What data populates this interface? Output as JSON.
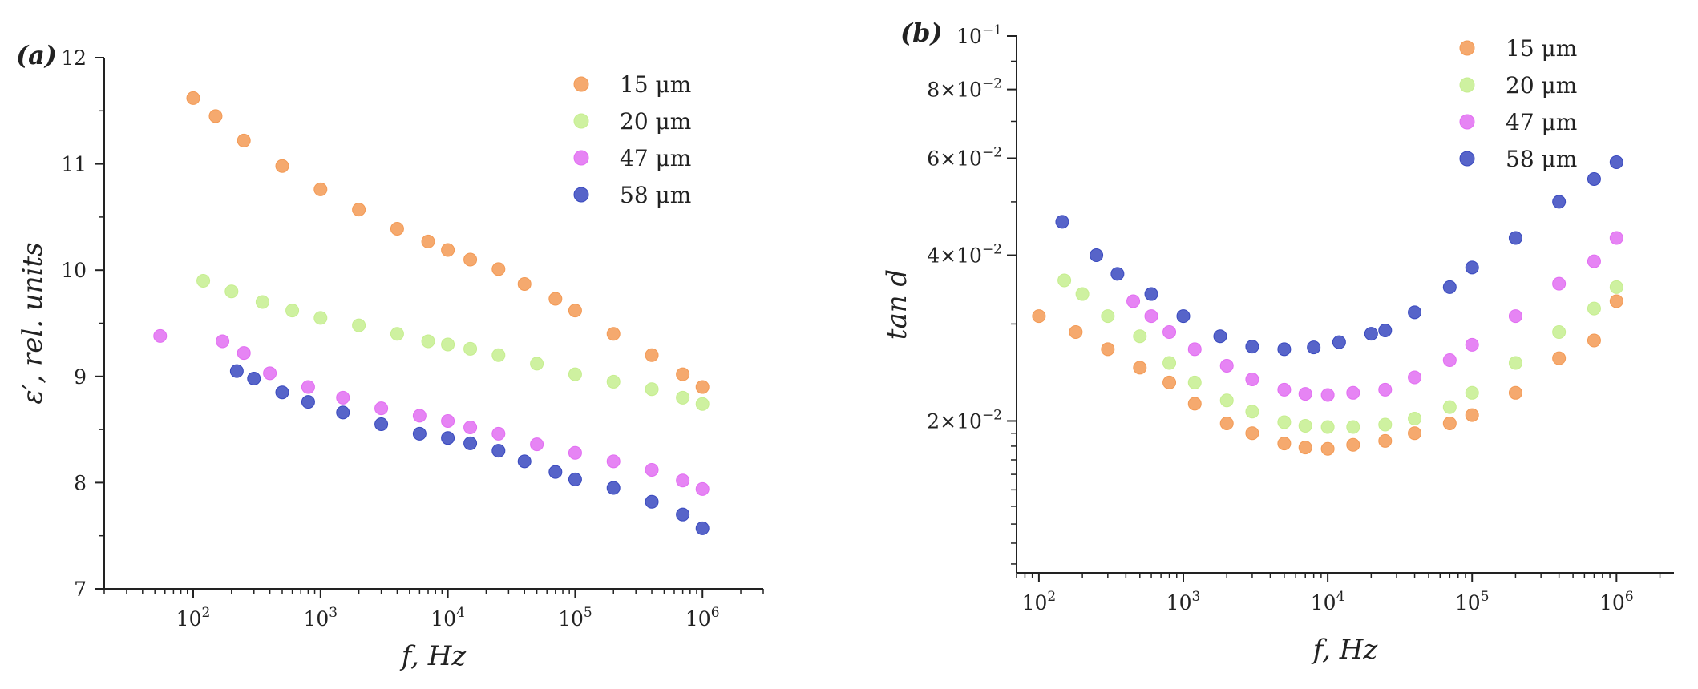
{
  "chart_data": [
    {
      "type": "scatter",
      "panel_label": "(a)",
      "xlabel": "f, Hz",
      "ylabel": "ε′, rel. units",
      "xscale": "log",
      "xlim": [
        20,
        3000000
      ],
      "ylim": [
        7,
        12
      ],
      "x_ticks": [
        100,
        1000,
        10000,
        100000,
        1000000
      ],
      "x_tick_labels": [
        {
          "base": "10",
          "exp": "2"
        },
        {
          "base": "10",
          "exp": "3"
        },
        {
          "base": "10",
          "exp": "4"
        },
        {
          "base": "10",
          "exp": "5"
        },
        {
          "base": "10",
          "exp": "6"
        }
      ],
      "y_ticks": [
        7,
        8,
        9,
        10,
        11,
        12
      ],
      "y_tick_labels": [
        "7",
        "8",
        "9",
        "10",
        "11",
        "12"
      ],
      "grid": false,
      "legend_position": "top-right",
      "series": [
        {
          "name": "15 μm",
          "color": "#f39a55",
          "x": [
            100,
            150,
            250,
            500,
            1000,
            2000,
            4000,
            7000,
            10000,
            15000,
            25000,
            40000,
            70000,
            100000,
            200000,
            400000,
            700000,
            1000000
          ],
          "y": [
            11.62,
            11.45,
            11.22,
            10.98,
            10.76,
            10.57,
            10.39,
            10.27,
            10.19,
            10.1,
            10.01,
            9.87,
            9.73,
            9.62,
            9.4,
            9.2,
            9.02,
            8.9
          ]
        },
        {
          "name": "20 μm",
          "color": "#c6ee8f",
          "x": [
            120,
            200,
            350,
            600,
            1000,
            2000,
            4000,
            7000,
            10000,
            15000,
            25000,
            50000,
            100000,
            200000,
            400000,
            700000,
            1000000
          ],
          "y": [
            9.9,
            9.8,
            9.7,
            9.62,
            9.55,
            9.48,
            9.4,
            9.33,
            9.3,
            9.26,
            9.2,
            9.12,
            9.02,
            8.95,
            8.88,
            8.8,
            8.74
          ]
        },
        {
          "name": "47 μm",
          "color": "#e26ef2",
          "x": [
            55,
            170,
            250,
            400,
            800,
            1500,
            3000,
            6000,
            10000,
            15000,
            25000,
            50000,
            100000,
            200000,
            400000,
            700000,
            1000000
          ],
          "y": [
            9.38,
            9.33,
            9.22,
            9.03,
            8.9,
            8.8,
            8.7,
            8.63,
            8.58,
            8.52,
            8.46,
            8.36,
            8.28,
            8.2,
            8.12,
            8.02,
            7.94
          ]
        },
        {
          "name": "58 μm",
          "color": "#3949bf",
          "x": [
            220,
            300,
            500,
            800,
            1500,
            3000,
            6000,
            10000,
            15000,
            25000,
            40000,
            70000,
            100000,
            200000,
            400000,
            700000,
            1000000
          ],
          "y": [
            9.05,
            8.98,
            8.85,
            8.76,
            8.66,
            8.55,
            8.46,
            8.42,
            8.37,
            8.3,
            8.2,
            8.1,
            8.03,
            7.95,
            7.82,
            7.7,
            7.57
          ]
        }
      ]
    },
    {
      "type": "scatter",
      "panel_label": "(b)",
      "xlabel": "f, Hz",
      "ylabel": "tan d",
      "xscale": "log",
      "yscale": "log",
      "xlim": [
        70,
        2500000
      ],
      "ylim": [
        0.0106,
        0.1
      ],
      "x_ticks": [
        100,
        1000,
        10000,
        100000,
        1000000
      ],
      "x_tick_labels": [
        {
          "base": "10",
          "exp": "2"
        },
        {
          "base": "10",
          "exp": "3"
        },
        {
          "base": "10",
          "exp": "4"
        },
        {
          "base": "10",
          "exp": "5"
        },
        {
          "base": "10",
          "exp": "6"
        }
      ],
      "y_ticks": [
        0.02,
        0.04,
        0.06,
        0.08,
        0.1
      ],
      "y_tick_labels": [
        {
          "base": "2×10",
          "exp": "−2"
        },
        {
          "base": "4×10",
          "exp": "−2"
        },
        {
          "base": "6×10",
          "exp": "−2"
        },
        {
          "base": "8×10",
          "exp": "−2"
        },
        {
          "base": "10",
          "exp": "−1"
        }
      ],
      "grid": false,
      "legend_position": "top-right",
      "series": [
        {
          "name": "15 μm",
          "color": "#f39a55",
          "x": [
            100,
            180,
            300,
            500,
            800,
            1200,
            2000,
            3000,
            5000,
            7000,
            10000,
            15000,
            25000,
            40000,
            70000,
            100000,
            200000,
            400000,
            700000,
            1000000
          ],
          "y": [
            0.031,
            0.029,
            0.027,
            0.025,
            0.0235,
            0.0215,
            0.0198,
            0.019,
            0.0182,
            0.0179,
            0.0178,
            0.0181,
            0.0184,
            0.019,
            0.0198,
            0.0205,
            0.0225,
            0.026,
            0.028,
            0.033
          ]
        },
        {
          "name": "20 μm",
          "color": "#c6ee8f",
          "x": [
            150,
            200,
            300,
            500,
            800,
            1200,
            2000,
            3000,
            5000,
            7000,
            10000,
            15000,
            25000,
            40000,
            70000,
            100000,
            200000,
            400000,
            700000,
            1000000
          ],
          "y": [
            0.036,
            0.034,
            0.031,
            0.0285,
            0.0255,
            0.0235,
            0.0218,
            0.0208,
            0.0199,
            0.0196,
            0.0195,
            0.0195,
            0.0197,
            0.0202,
            0.0212,
            0.0225,
            0.0255,
            0.029,
            0.032,
            0.035
          ]
        },
        {
          "name": "47 μm",
          "color": "#e26ef2",
          "x": [
            450,
            600,
            800,
            1200,
            2000,
            3000,
            5000,
            7000,
            10000,
            15000,
            25000,
            40000,
            70000,
            100000,
            200000,
            400000,
            700000,
            1000000
          ],
          "y": [
            0.033,
            0.031,
            0.029,
            0.027,
            0.0252,
            0.0238,
            0.0228,
            0.0224,
            0.0223,
            0.0225,
            0.0228,
            0.024,
            0.0258,
            0.0275,
            0.031,
            0.0355,
            0.039,
            0.043
          ]
        },
        {
          "name": "58 μm",
          "color": "#3949bf",
          "x": [
            145,
            250,
            350,
            600,
            1000,
            1800,
            3000,
            5000,
            8000,
            12000,
            20000,
            25000,
            40000,
            70000,
            100000,
            200000,
            400000,
            700000,
            1000000
          ],
          "y": [
            0.046,
            0.04,
            0.037,
            0.034,
            0.031,
            0.0285,
            0.0273,
            0.027,
            0.0272,
            0.0278,
            0.0288,
            0.0292,
            0.0315,
            0.035,
            0.038,
            0.043,
            0.05,
            0.055,
            0.059
          ]
        }
      ]
    }
  ]
}
